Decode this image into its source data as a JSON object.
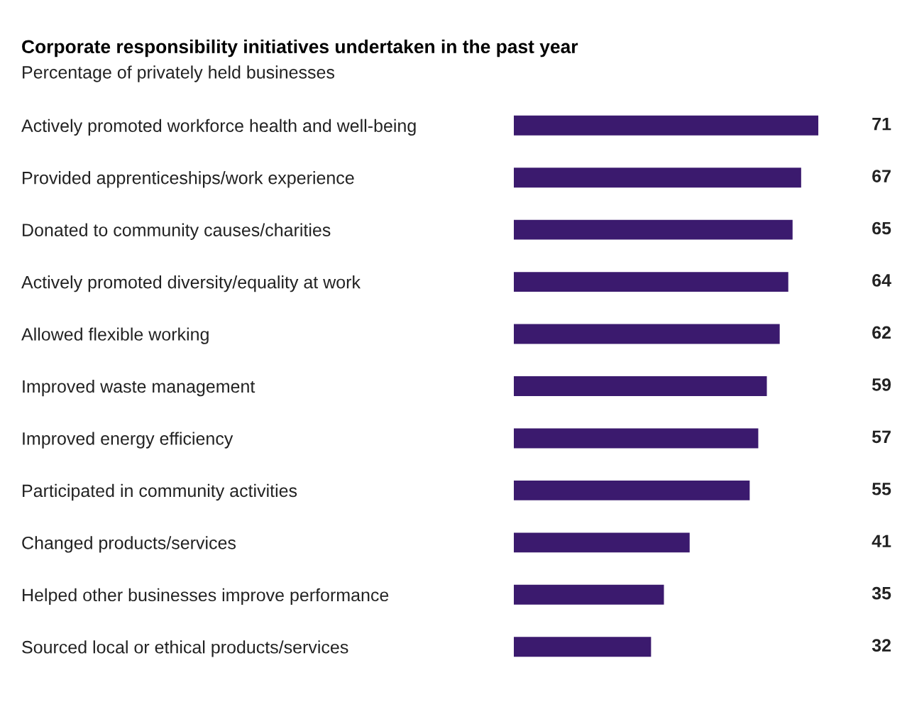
{
  "chart_data": {
    "type": "bar",
    "orientation": "horizontal",
    "title": "Corporate responsibility initiatives undertaken in the past year",
    "subtitle": "Percentage of privately held businesses",
    "categories": [
      "Actively promoted workforce health and well-being",
      "Provided apprenticeships/work experience",
      "Donated to community causes/charities",
      "Actively promoted diversity/equality at work",
      "Allowed flexible working",
      "Improved waste management",
      "Improved energy efficiency",
      "Participated in community activities",
      "Changed products/services",
      "Helped other businesses improve performance",
      "Sourced local or ethical products/services"
    ],
    "values": [
      71,
      67,
      65,
      64,
      62,
      59,
      57,
      55,
      41,
      35,
      32
    ],
    "color": "#3b1a6e",
    "data_labels": true,
    "grid": false,
    "legend": false
  }
}
